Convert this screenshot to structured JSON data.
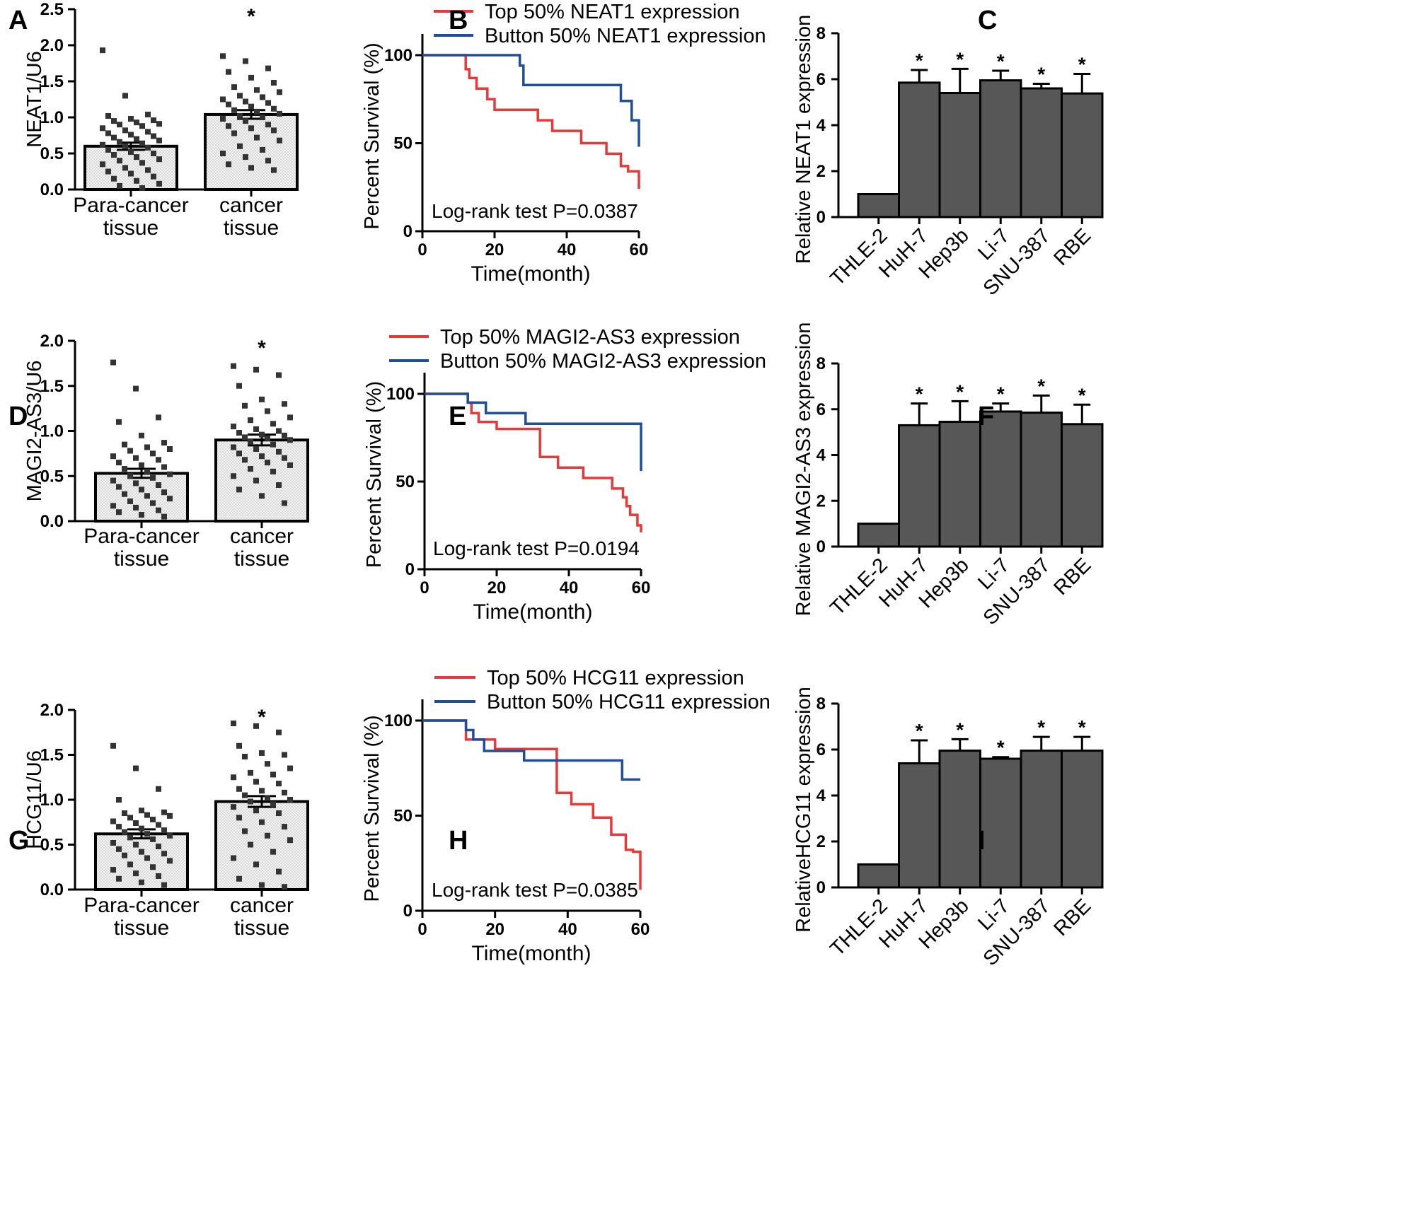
{
  "chart_data": [
    {
      "panel": "A",
      "type": "bar",
      "categories": [
        "Para-cancer\ntissue",
        "cancer\ntissue"
      ],
      "values": [
        0.6,
        1.04
      ],
      "errors": [
        0.05,
        0.06
      ],
      "ylabel": "NEAT1/U6",
      "ylim": [
        0,
        2.5
      ],
      "yticks": [
        "0.0",
        "0.5",
        "1.0",
        "1.5",
        "2.0",
        "2.5"
      ],
      "significance": [
        "",
        "*"
      ],
      "points": [
        [
          1.93,
          1.3,
          1.04,
          1.02,
          0.98,
          0.96,
          0.95,
          0.93,
          0.91,
          0.9,
          0.88,
          0.85,
          0.82,
          0.8,
          0.78,
          0.76,
          0.74,
          0.72,
          0.7,
          0.68,
          0.66,
          0.64,
          0.62,
          0.6,
          0.58,
          0.55,
          0.52,
          0.5,
          0.48,
          0.45,
          0.42,
          0.4,
          0.37,
          0.35,
          0.3,
          0.27,
          0.25,
          0.22,
          0.18,
          0.15,
          0.12,
          0.08,
          0.05,
          0.02
        ],
        [
          1.85,
          1.78,
          1.68,
          1.63,
          1.55,
          1.48,
          1.42,
          1.38,
          1.35,
          1.3,
          1.28,
          1.25,
          1.22,
          1.2,
          1.18,
          1.15,
          1.12,
          1.1,
          1.08,
          1.05,
          1.02,
          1.0,
          0.98,
          0.95,
          0.9,
          0.88,
          0.85,
          0.82,
          0.78,
          0.72,
          0.68,
          0.6,
          0.55,
          0.5,
          0.45,
          0.4,
          0.35,
          0.3,
          0.27
        ]
      ]
    },
    {
      "panel": "B",
      "type": "line",
      "title": "",
      "xlabel": "Time(month)",
      "ylabel": "Percent Survival (%)",
      "xlim": [
        0,
        60
      ],
      "ylim": [
        0,
        100
      ],
      "xticks": [
        "0",
        "20",
        "40",
        "60"
      ],
      "yticks": [
        "0",
        "50",
        "100"
      ],
      "annotation": "Log-rank test P=0.0387",
      "series": [
        {
          "name": "Top 50% NEAT1 expression",
          "color": "#e8393a",
          "x": [
            0,
            12,
            12,
            13,
            13,
            15,
            15,
            18,
            18,
            20,
            20,
            32,
            32,
            36,
            36,
            44,
            44,
            51,
            51,
            55,
            55,
            57,
            57,
            60,
            60
          ],
          "y": [
            100,
            100,
            92,
            92,
            87,
            87,
            81,
            81,
            75,
            75,
            69,
            69,
            63,
            63,
            57,
            57,
            50,
            50,
            44,
            44,
            37,
            37,
            34,
            34,
            24
          ]
        },
        {
          "name": "Button 50% NEAT1 expression",
          "color": "#1f4e9c",
          "x": [
            0,
            27,
            27,
            28,
            28,
            55,
            55,
            58,
            58,
            60,
            60
          ],
          "y": [
            100,
            100,
            94,
            94,
            83,
            83,
            74,
            74,
            63,
            63,
            48
          ]
        }
      ]
    },
    {
      "panel": "C",
      "type": "bar",
      "categories": [
        "THLE-2",
        "HuH-7",
        "Hep3b",
        "Li-7",
        "SNU-387",
        "RBE"
      ],
      "values": [
        1.0,
        5.85,
        5.4,
        5.95,
        5.6,
        5.38
      ],
      "errors": [
        0,
        0.55,
        1.05,
        0.42,
        0.2,
        0.85
      ],
      "ylabel": "Relative NEAT1 expression",
      "ylim": [
        0,
        8
      ],
      "yticks": [
        "0",
        "2",
        "4",
        "6",
        "8"
      ],
      "significance": [
        "",
        "*",
        "*",
        "*",
        "*",
        "*"
      ]
    },
    {
      "panel": "D",
      "type": "bar",
      "categories": [
        "Para-cancer\ntissue",
        "cancer\ntissue"
      ],
      "values": [
        0.53,
        0.9
      ],
      "errors": [
        0.05,
        0.06
      ],
      "ylabel": "MAGI2-AS3/U6",
      "ylim": [
        0,
        2.0
      ],
      "yticks": [
        "0.0",
        "0.5",
        "1.0",
        "1.5",
        "2.0"
      ],
      "significance": [
        "",
        "*"
      ],
      "points": [
        [
          1.76,
          1.47,
          1.15,
          1.1,
          0.95,
          0.87,
          0.85,
          0.82,
          0.8,
          0.78,
          0.75,
          0.72,
          0.7,
          0.68,
          0.65,
          0.62,
          0.6,
          0.58,
          0.55,
          0.52,
          0.5,
          0.48,
          0.45,
          0.42,
          0.4,
          0.38,
          0.35,
          0.32,
          0.3,
          0.28,
          0.25,
          0.22,
          0.2,
          0.17,
          0.15,
          0.12,
          0.1,
          0.07,
          0.05
        ],
        [
          1.72,
          1.68,
          1.62,
          1.5,
          1.35,
          1.3,
          1.28,
          1.22,
          1.15,
          1.12,
          1.08,
          1.05,
          1.02,
          1.0,
          0.98,
          0.96,
          0.95,
          0.93,
          0.92,
          0.9,
          0.88,
          0.85,
          0.82,
          0.8,
          0.77,
          0.75,
          0.72,
          0.7,
          0.68,
          0.65,
          0.62,
          0.58,
          0.55,
          0.5,
          0.45,
          0.4,
          0.35,
          0.28,
          0.2
        ]
      ]
    },
    {
      "panel": "E",
      "type": "line",
      "title": "",
      "xlabel": "Time(month)",
      "ylabel": "Percent Survival (%)",
      "xlim": [
        0,
        60
      ],
      "ylim": [
        0,
        100
      ],
      "xticks": [
        "0",
        "20",
        "40",
        "60"
      ],
      "yticks": [
        "0",
        "50",
        "100"
      ],
      "annotation": "Log-rank test P=0.0194",
      "series": [
        {
          "name": "Top 50% MAGI2-AS3 expression",
          "color": "#e8393a",
          "x": [
            0,
            12,
            12,
            13,
            13,
            15,
            15,
            20,
            20,
            32,
            32,
            37,
            37,
            44,
            44,
            52,
            52,
            55,
            55,
            56,
            56,
            57,
            57,
            59,
            59,
            60,
            60
          ],
          "y": [
            100,
            100,
            95,
            95,
            89,
            89,
            84,
            84,
            80,
            80,
            64,
            64,
            58,
            58,
            52,
            52,
            46,
            46,
            41,
            41,
            36,
            36,
            31,
            31,
            25,
            25,
            21
          ]
        },
        {
          "name": "Button 50% MAGI2-AS3 expression",
          "color": "#1f4e9c",
          "x": [
            0,
            12,
            12,
            17,
            17,
            28,
            28,
            60,
            60
          ],
          "y": [
            100,
            100,
            95,
            95,
            89,
            89,
            83,
            83,
            56
          ]
        }
      ]
    },
    {
      "panel": "F",
      "type": "bar",
      "categories": [
        "THLE-2",
        "HuH-7",
        "Hep3b",
        "Li-7",
        "SNU-387",
        "RBE"
      ],
      "values": [
        1.0,
        5.3,
        5.45,
        5.9,
        5.85,
        5.35
      ],
      "errors": [
        0,
        0.95,
        0.9,
        0.35,
        0.75,
        0.85
      ],
      "ylabel": "Relative MAGI2-AS3 expression",
      "ylim": [
        0,
        8
      ],
      "yticks": [
        "0",
        "2",
        "4",
        "6",
        "8"
      ],
      "significance": [
        "",
        "*",
        "*",
        "*",
        "*",
        "*"
      ]
    },
    {
      "panel": "G",
      "type": "bar",
      "categories": [
        "Para-cancer\ntissue",
        "cancer\ntissue"
      ],
      "values": [
        0.62,
        0.98
      ],
      "errors": [
        0.05,
        0.06
      ],
      "ylabel": "HCG11/U6",
      "ylim": [
        0,
        2.0
      ],
      "yticks": [
        "0.0",
        "0.5",
        "1.0",
        "1.5",
        "2.0"
      ],
      "significance": [
        "",
        "*"
      ],
      "points": [
        [
          1.6,
          1.35,
          1.12,
          1.0,
          0.88,
          0.86,
          0.85,
          0.83,
          0.82,
          0.8,
          0.78,
          0.76,
          0.74,
          0.72,
          0.7,
          0.68,
          0.66,
          0.64,
          0.62,
          0.6,
          0.58,
          0.56,
          0.52,
          0.5,
          0.48,
          0.45,
          0.42,
          0.4,
          0.38,
          0.35,
          0.32,
          0.28,
          0.25,
          0.22,
          0.18,
          0.15,
          0.12,
          0.08,
          0.05
        ],
        [
          1.85,
          1.82,
          1.75,
          1.6,
          1.52,
          1.5,
          1.48,
          1.4,
          1.35,
          1.3,
          1.28,
          1.25,
          1.2,
          1.18,
          1.12,
          1.1,
          1.08,
          1.05,
          1.02,
          1.0,
          0.98,
          0.95,
          0.92,
          0.88,
          0.85,
          0.8,
          0.75,
          0.7,
          0.65,
          0.6,
          0.55,
          0.5,
          0.42,
          0.35,
          0.28,
          0.2,
          0.12,
          0.05,
          0.03
        ]
      ]
    },
    {
      "panel": "H",
      "type": "line",
      "title": "",
      "xlabel": "Time(month)",
      "ylabel": "Percent Survival (%)",
      "xlim": [
        0,
        60
      ],
      "ylim": [
        0,
        100
      ],
      "xticks": [
        "0",
        "20",
        "40",
        "60"
      ],
      "yticks": [
        "0",
        "50",
        "100"
      ],
      "annotation": "Log-rank test P=0.0385",
      "series": [
        {
          "name": "Top 50% HCG11 expression",
          "color": "#e8393a",
          "x": [
            0,
            12,
            12,
            20,
            20,
            37,
            37,
            41,
            41,
            47,
            47,
            52,
            52,
            56,
            56,
            58,
            58,
            60,
            60
          ],
          "y": [
            100,
            100,
            90,
            90,
            85,
            85,
            62,
            62,
            56,
            56,
            49,
            49,
            40,
            40,
            32,
            32,
            31,
            31,
            11
          ]
        },
        {
          "name": "Button 50% HCG11 expression",
          "color": "#1f4e9c",
          "x": [
            0,
            12,
            12,
            14,
            14,
            17,
            17,
            28,
            28,
            55,
            55,
            60
          ],
          "y": [
            100,
            100,
            95,
            95,
            90,
            90,
            84,
            84,
            79,
            79,
            69,
            69
          ]
        }
      ]
    },
    {
      "panel": "I",
      "type": "bar",
      "categories": [
        "THLE-2",
        "HuH-7",
        "Hep3b",
        "Li-7",
        "SNU-387",
        "RBE"
      ],
      "values": [
        1.0,
        5.4,
        5.95,
        5.6,
        5.95,
        5.95
      ],
      "errors": [
        0,
        1.0,
        0.5,
        0.07,
        0.6,
        0.6
      ],
      "ylabel": "RelativeHCG11 expression",
      "ylim": [
        0,
        8
      ],
      "yticks": [
        "0",
        "2",
        "4",
        "6",
        "8"
      ],
      "significance": [
        "",
        "*",
        "*",
        "*",
        "*",
        "*"
      ]
    }
  ]
}
